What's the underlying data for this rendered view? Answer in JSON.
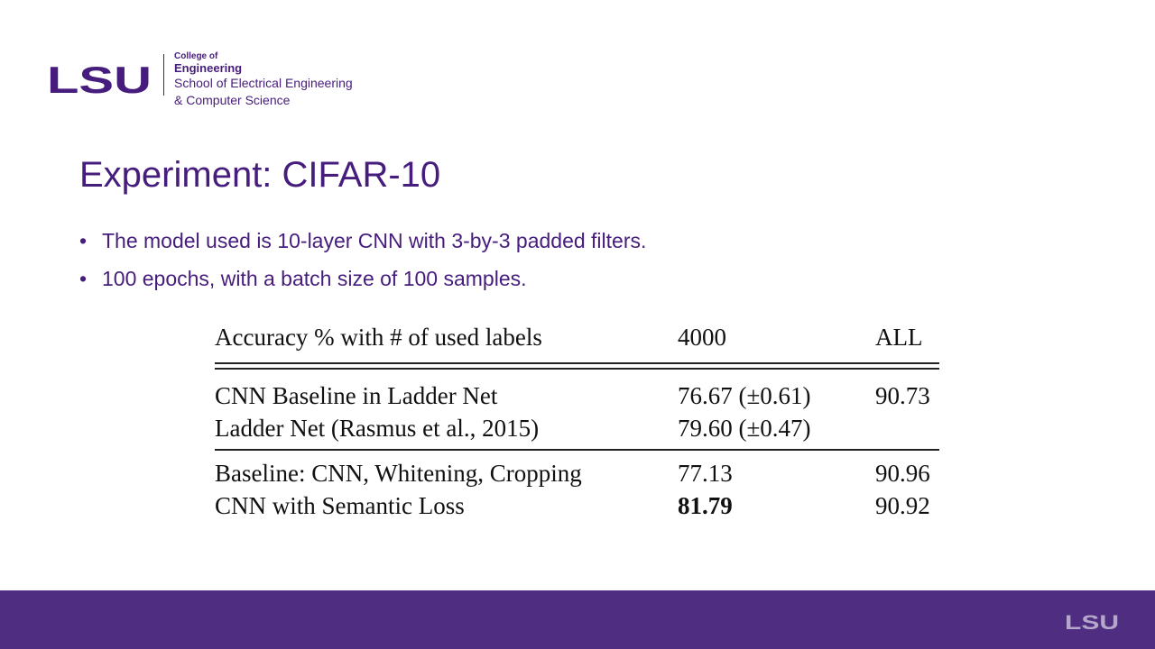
{
  "brand": {
    "logo_text": "LSU",
    "line1": "College of",
    "line2": "Engineering",
    "line3": "School of Electrical Engineering",
    "line4": "& Computer Science",
    "primary_color": "#461d7c",
    "footer_color": "#4f2e82"
  },
  "slide": {
    "title": "Experiment: CIFAR-10",
    "bullets": [
      "The model used is 10-layer CNN with 3-by-3 padded filters.",
      "100 epochs, with a batch size of 100 samples."
    ]
  },
  "table": {
    "headers": [
      "Accuracy % with # of used labels",
      "4000",
      "ALL"
    ],
    "rows": [
      [
        "CNN Baseline in Ladder Net",
        "76.67 (±0.61)",
        "90.73"
      ],
      [
        "Ladder Net (Rasmus et al., 2015)",
        "79.60 (±0.47)",
        ""
      ],
      [
        "Baseline: CNN, Whitening, Cropping",
        "77.13",
        "90.96"
      ],
      [
        "CNN with Semantic Loss",
        "81.79",
        "90.92"
      ]
    ]
  },
  "footer": {
    "logo_text": "LSU"
  }
}
